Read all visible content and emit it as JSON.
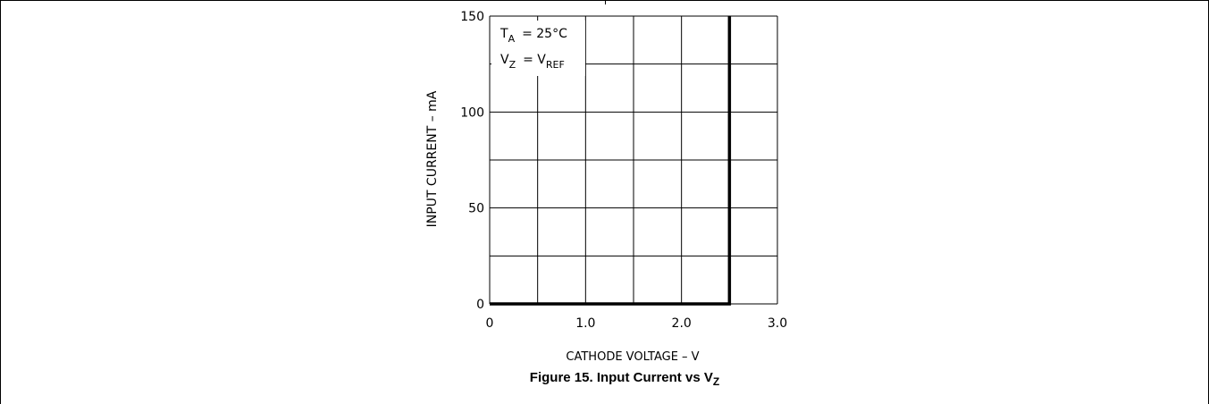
{
  "chart_data": {
    "type": "line",
    "ylabel": "INPUT CURRENT – mA",
    "xlabel": "CATHODE VOLTAGE – V",
    "xlim": [
      0,
      3.0
    ],
    "ylim": [
      0,
      150
    ],
    "x_grid_step": 0.5,
    "y_grid_step": 25,
    "grid": true,
    "x_ticks": [
      0,
      1.0,
      2.0,
      3.0
    ],
    "x_tick_labels": [
      "0",
      "1.0",
      "2.0",
      "3.0"
    ],
    "y_ticks": [
      0,
      50,
      100,
      150
    ],
    "y_tick_labels": [
      "0",
      "50",
      "100",
      "150"
    ],
    "series": [
      {
        "x": [
          0,
          2.5,
          2.5
        ],
        "y": [
          0,
          0,
          150
        ]
      }
    ],
    "annotation": {
      "t_sym": "T",
      "t_sub": "A",
      "t_eq": "= 25°C",
      "v_sym": "V",
      "v_sub": "Z",
      "v_eq": "= V",
      "v_eq_sub": "REF"
    }
  },
  "caption": {
    "text": "Figure 15. Input Current vs V",
    "sub": "Z"
  }
}
